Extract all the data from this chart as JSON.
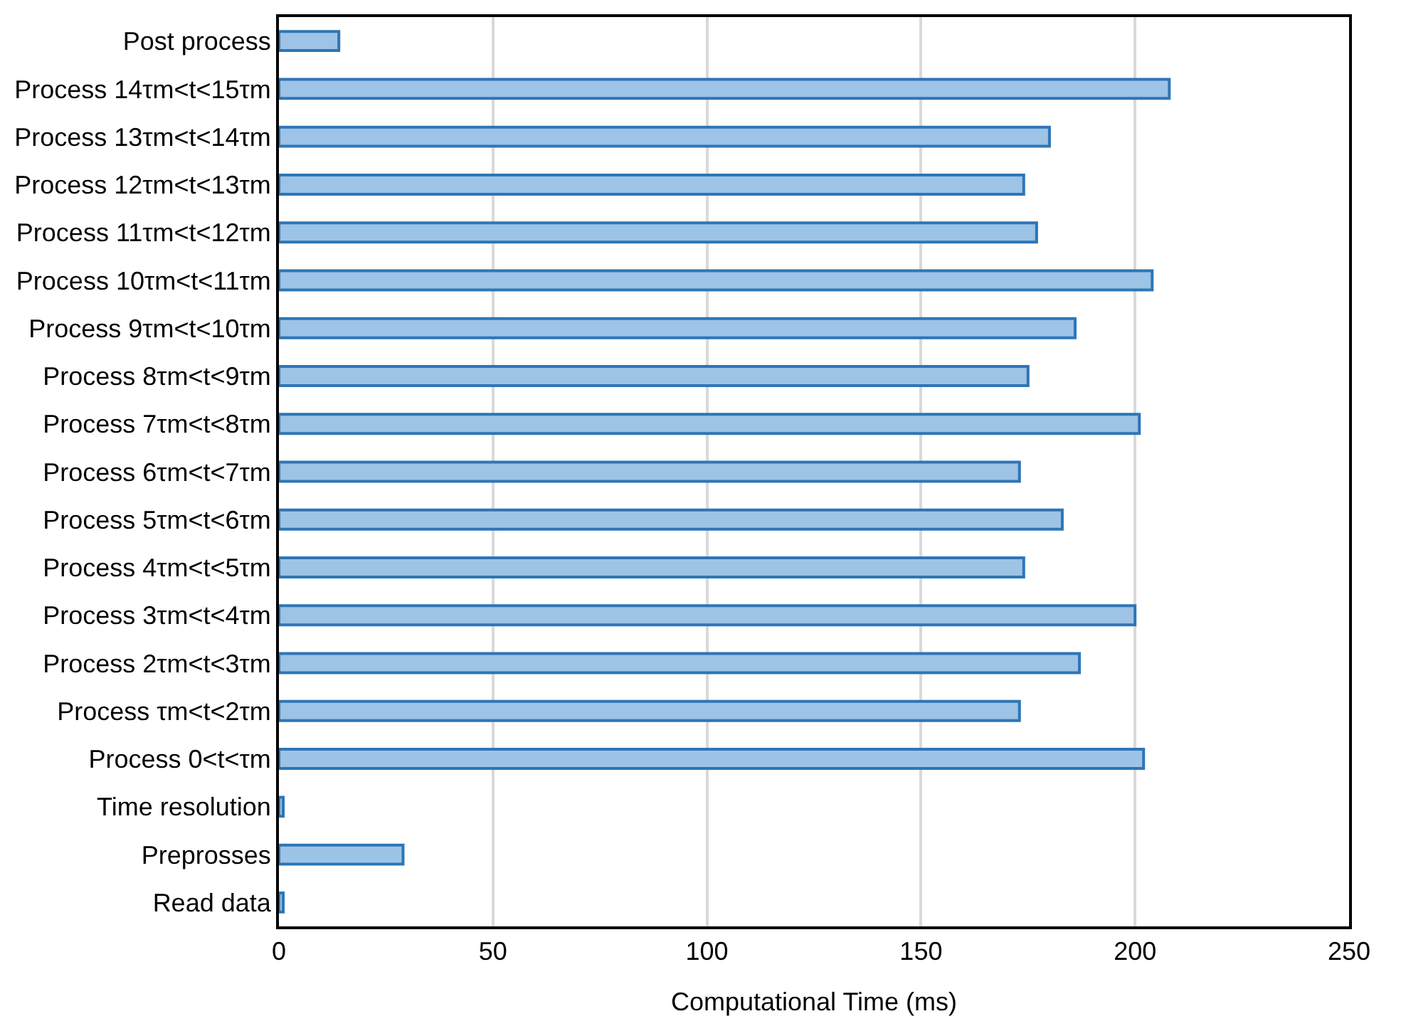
{
  "chart_data": {
    "type": "bar",
    "orientation": "horizontal",
    "xlabel": "Computational Time (ms)",
    "categories": [
      "Post process",
      "Process 14τm<t<15τm",
      "Process 13τm<t<14τm",
      "Process 12τm<t<13τm",
      "Process 11τm<t<12τm",
      "Process 10τm<t<11τm",
      "Process 9τm<t<10τm",
      "Process 8τm<t<9τm",
      "Process 7τm<t<8τm",
      "Process 6τm<t<7τm",
      "Process 5τm<t<6τm",
      "Process 4τm<t<5τm",
      "Process 3τm<t<4τm",
      "Process 2τm<t<3τm",
      "Process τm<t<2τm",
      "Process 0<t<τm",
      "Time resolution",
      "Preprosses",
      "Read data"
    ],
    "values": [
      14,
      208,
      180,
      174,
      177,
      204,
      186,
      175,
      201,
      173,
      183,
      174,
      200,
      187,
      173,
      202,
      1,
      29,
      1
    ],
    "color": "#9dc3e6",
    "xlim": [
      0,
      250
    ],
    "xticks": [
      0,
      50,
      100,
      150,
      200,
      250
    ],
    "grid": "x"
  }
}
